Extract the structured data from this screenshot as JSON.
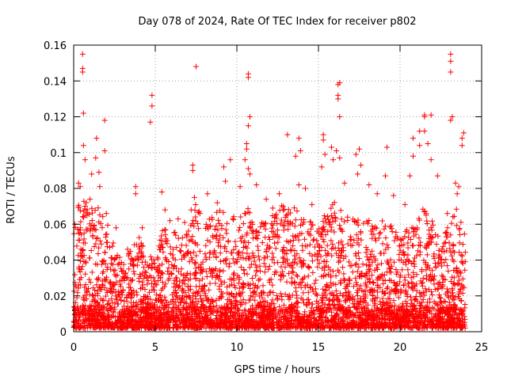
{
  "chart_data": {
    "type": "scatter",
    "title": "Day 078 of 2024, Rate Of TEC Index for receiver p802",
    "xlabel": "GPS time / hours",
    "ylabel": "ROTI / TECUs",
    "xlim": [
      0,
      25
    ],
    "ylim": [
      0,
      0.16
    ],
    "xticks": [
      0,
      5,
      10,
      15,
      20,
      25
    ],
    "xtick_labels": [
      "0",
      "5",
      "10",
      "15",
      "20",
      "25"
    ],
    "yticks": [
      0,
      0.02,
      0.04,
      0.06,
      0.08,
      0.1,
      0.12,
      0.14,
      0.16
    ],
    "ytick_labels": [
      "0",
      "0.02",
      "0.04",
      "0.06",
      "0.08",
      "0.1",
      "0.12",
      "0.14",
      "0.16"
    ],
    "grid": true,
    "marker": "+",
    "color": "#ff0000",
    "series": [
      {
        "name": "ROTI",
        "points": [
          [
            0.55,
            0.155
          ],
          [
            0.55,
            0.147
          ],
          [
            0.55,
            0.145
          ],
          [
            0.6,
            0.122
          ],
          [
            0.6,
            0.104
          ],
          [
            0.7,
            0.096
          ],
          [
            1.4,
            0.108
          ],
          [
            1.9,
            0.118
          ],
          [
            1.9,
            0.101
          ],
          [
            1.1,
            0.088
          ],
          [
            1.6,
            0.081
          ],
          [
            0.3,
            0.083
          ],
          [
            0.4,
            0.081
          ],
          [
            1.0,
            0.074
          ],
          [
            2.0,
            0.066
          ],
          [
            1.35,
            0.097
          ],
          [
            1.55,
            0.089
          ],
          [
            3.8,
            0.081
          ],
          [
            3.8,
            0.077
          ],
          [
            4.2,
            0.058
          ],
          [
            4.8,
            0.132
          ],
          [
            4.8,
            0.126
          ],
          [
            4.7,
            0.117
          ],
          [
            5.4,
            0.078
          ],
          [
            5.6,
            0.068
          ],
          [
            5.9,
            0.062
          ],
          [
            6.4,
            0.063
          ],
          [
            6.8,
            0.061
          ],
          [
            7.5,
            0.148
          ],
          [
            7.3,
            0.093
          ],
          [
            7.3,
            0.09
          ],
          [
            7.4,
            0.075
          ],
          [
            7.2,
            0.068
          ],
          [
            8.2,
            0.077
          ],
          [
            8.8,
            0.072
          ],
          [
            9.2,
            0.092
          ],
          [
            9.3,
            0.084
          ],
          [
            9.6,
            0.096
          ],
          [
            10.2,
            0.081
          ],
          [
            10.7,
            0.144
          ],
          [
            10.7,
            0.142
          ],
          [
            10.8,
            0.12
          ],
          [
            10.7,
            0.115
          ],
          [
            10.6,
            0.105
          ],
          [
            10.6,
            0.102
          ],
          [
            10.5,
            0.096
          ],
          [
            10.7,
            0.091
          ],
          [
            10.8,
            0.088
          ],
          [
            11.2,
            0.082
          ],
          [
            11.8,
            0.074
          ],
          [
            12.6,
            0.077
          ],
          [
            13.1,
            0.11
          ],
          [
            13.8,
            0.108
          ],
          [
            13.9,
            0.101
          ],
          [
            13.6,
            0.098
          ],
          [
            13.8,
            0.082
          ],
          [
            14.2,
            0.08
          ],
          [
            14.6,
            0.071
          ],
          [
            15.3,
            0.11
          ],
          [
            15.3,
            0.107
          ],
          [
            15.4,
            0.099
          ],
          [
            15.2,
            0.092
          ],
          [
            15.8,
            0.103
          ],
          [
            15.9,
            0.096
          ],
          [
            16.3,
            0.139
          ],
          [
            16.2,
            0.138
          ],
          [
            16.2,
            0.132
          ],
          [
            16.2,
            0.13
          ],
          [
            16.3,
            0.12
          ],
          [
            16.1,
            0.101
          ],
          [
            16.3,
            0.097
          ],
          [
            16.6,
            0.083
          ],
          [
            17.3,
            0.099
          ],
          [
            17.5,
            0.102
          ],
          [
            17.6,
            0.093
          ],
          [
            17.4,
            0.088
          ],
          [
            18.1,
            0.082
          ],
          [
            18.6,
            0.077
          ],
          [
            19.2,
            0.103
          ],
          [
            19.1,
            0.087
          ],
          [
            19.6,
            0.076
          ],
          [
            20.3,
            0.071
          ],
          [
            20.8,
            0.098
          ],
          [
            20.8,
            0.108
          ],
          [
            20.6,
            0.087
          ],
          [
            21.2,
            0.104
          ],
          [
            21.2,
            0.112
          ],
          [
            21.5,
            0.121
          ],
          [
            21.5,
            0.12
          ],
          [
            21.5,
            0.112
          ],
          [
            21.9,
            0.121
          ],
          [
            21.7,
            0.105
          ],
          [
            21.9,
            0.096
          ],
          [
            22.3,
            0.087
          ],
          [
            23.1,
            0.155
          ],
          [
            23.1,
            0.151
          ],
          [
            23.1,
            0.145
          ],
          [
            23.2,
            0.12
          ],
          [
            23.1,
            0.118
          ],
          [
            23.9,
            0.111
          ],
          [
            23.8,
            0.108
          ],
          [
            23.8,
            0.104
          ],
          [
            23.4,
            0.083
          ],
          [
            23.6,
            0.081
          ],
          [
            23.5,
            0.077
          ],
          [
            22.9,
            0.066
          ],
          [
            2.6,
            0.058
          ],
          [
            3.3,
            0.046
          ],
          [
            12.2,
            0.069
          ]
        ]
      }
    ],
    "dense_envelope": {
      "description": "Upper envelope (hour, ROTI) of the dense point cloud sampled every 0.5 h",
      "x": [
        0.0,
        0.5,
        1.0,
        1.5,
        2.0,
        2.5,
        3.0,
        3.5,
        4.0,
        4.5,
        5.0,
        5.5,
        6.0,
        6.5,
        7.0,
        7.5,
        8.0,
        8.5,
        9.0,
        9.5,
        10.0,
        10.5,
        11.0,
        11.5,
        12.0,
        12.5,
        13.0,
        13.5,
        14.0,
        14.5,
        15.0,
        15.5,
        16.0,
        16.5,
        17.0,
        17.5,
        18.0,
        18.5,
        19.0,
        19.5,
        20.0,
        20.5,
        21.0,
        21.5,
        22.0,
        22.5,
        23.0,
        23.5,
        24.0
      ],
      "y": [
        0.062,
        0.078,
        0.068,
        0.072,
        0.064,
        0.048,
        0.038,
        0.046,
        0.055,
        0.04,
        0.045,
        0.062,
        0.058,
        0.052,
        0.058,
        0.072,
        0.062,
        0.065,
        0.07,
        0.062,
        0.066,
        0.075,
        0.062,
        0.062,
        0.064,
        0.07,
        0.072,
        0.07,
        0.064,
        0.062,
        0.058,
        0.068,
        0.074,
        0.066,
        0.064,
        0.064,
        0.066,
        0.058,
        0.064,
        0.06,
        0.052,
        0.058,
        0.064,
        0.07,
        0.064,
        0.048,
        0.062,
        0.07,
        0.055
      ]
    }
  }
}
